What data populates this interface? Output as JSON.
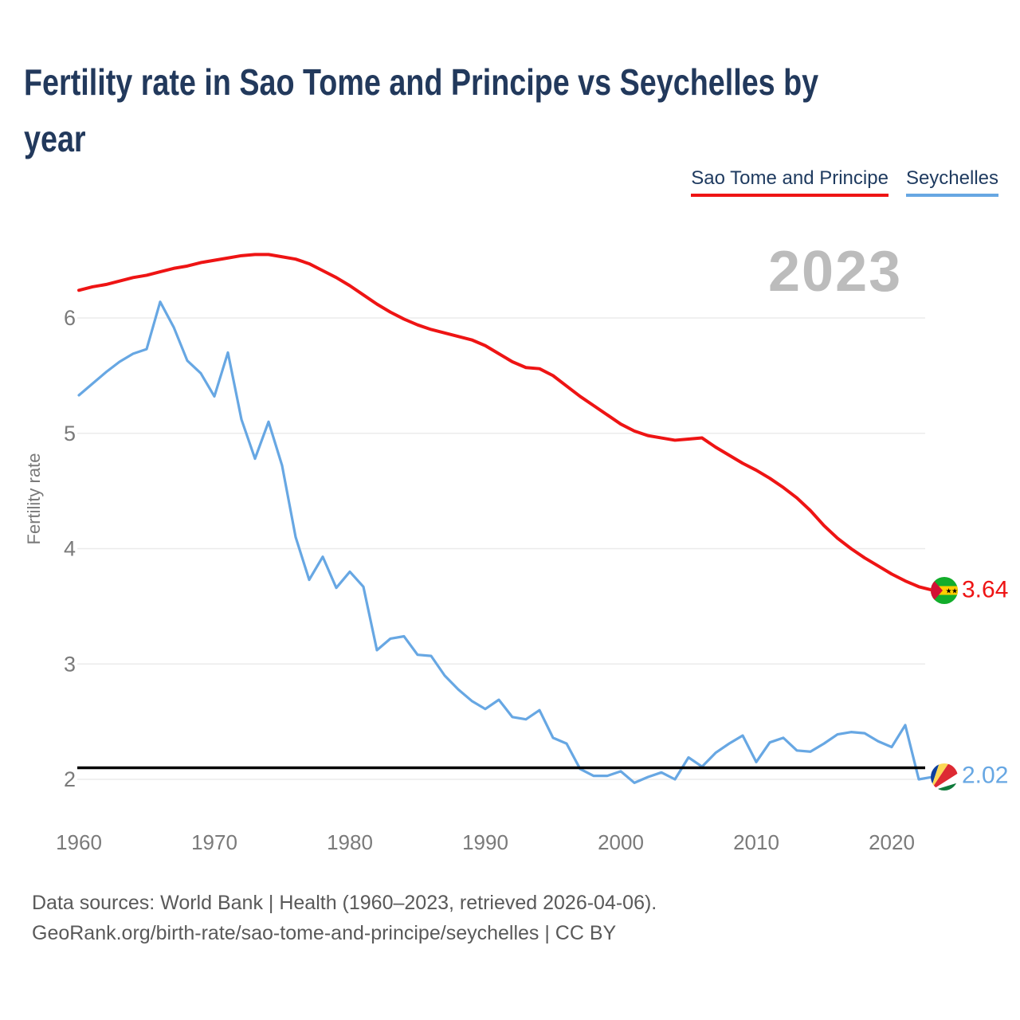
{
  "header": {
    "title_lines": [
      "Fertility rate in Sao Tome and Principe vs Seychelles by",
      "year"
    ]
  },
  "legend": {
    "items": [
      {
        "label": "Sao Tome and Principe",
        "color": "#ee1414"
      },
      {
        "label": "Seychelles",
        "color": "#67a7e3"
      }
    ]
  },
  "watermark": "2023",
  "y_axis": {
    "label": "Fertility rate"
  },
  "end_labels": {
    "sao_tome": {
      "value": "3.64",
      "color": "#ee1414"
    },
    "seychelles": {
      "value": "2.02",
      "color": "#67a7e3"
    }
  },
  "footer": {
    "line1": "Data sources: World Bank | Health (1960–2023, retrieved 2026-04-06).",
    "line2": "GeoRank.org/birth-rate/sao-tome-and-principe/seychelles | CC BY"
  },
  "chart_data": {
    "type": "line",
    "title": "Fertility rate in Sao Tome and Principe vs Seychelles by year",
    "ylabel": "Fertility rate",
    "x_range": [
      1960,
      2023
    ],
    "x_step": 1,
    "x_ticks": [
      1960,
      1970,
      1980,
      1990,
      2000,
      2010,
      2020
    ],
    "y_ticks": [
      2,
      3,
      4,
      5,
      6
    ],
    "ylim": [
      1.85,
      6.8
    ],
    "grid": "horizontal",
    "legend_position": "top-right",
    "reference_line_y": 2.1,
    "annotation_year": "2023",
    "series": [
      {
        "name": "Sao Tome and Principe",
        "color": "#ee1414",
        "end_value": 3.64,
        "values": [
          6.24,
          6.27,
          6.29,
          6.32,
          6.35,
          6.37,
          6.4,
          6.43,
          6.45,
          6.48,
          6.5,
          6.52,
          6.54,
          6.55,
          6.55,
          6.53,
          6.51,
          6.47,
          6.41,
          6.35,
          6.28,
          6.2,
          6.12,
          6.05,
          5.99,
          5.94,
          5.9,
          5.87,
          5.84,
          5.81,
          5.76,
          5.69,
          5.62,
          5.57,
          5.56,
          5.5,
          5.41,
          5.32,
          5.24,
          5.16,
          5.08,
          5.02,
          4.98,
          4.96,
          4.94,
          4.95,
          4.96,
          4.88,
          4.81,
          4.74,
          4.68,
          4.61,
          4.53,
          4.44,
          4.33,
          4.2,
          4.09,
          4.0,
          3.92,
          3.85,
          3.78,
          3.72,
          3.67,
          3.64
        ]
      },
      {
        "name": "Seychelles",
        "color": "#67a7e3",
        "end_value": 2.02,
        "values": [
          5.33,
          5.43,
          5.53,
          5.62,
          5.69,
          5.73,
          6.14,
          5.92,
          5.63,
          5.52,
          5.32,
          5.7,
          5.12,
          4.78,
          5.1,
          4.72,
          4.1,
          3.73,
          3.93,
          3.66,
          3.8,
          3.67,
          3.12,
          3.22,
          3.24,
          3.08,
          3.07,
          2.9,
          2.78,
          2.68,
          2.61,
          2.69,
          2.54,
          2.52,
          2.6,
          2.36,
          2.31,
          2.09,
          2.03,
          2.03,
          2.07,
          1.97,
          2.02,
          2.06,
          2.0,
          2.19,
          2.11,
          2.23,
          2.31,
          2.38,
          2.15,
          2.32,
          2.36,
          2.25,
          2.24,
          2.31,
          2.39,
          2.41,
          2.4,
          2.33,
          2.28,
          2.47,
          2.0,
          2.02
        ]
      }
    ]
  }
}
